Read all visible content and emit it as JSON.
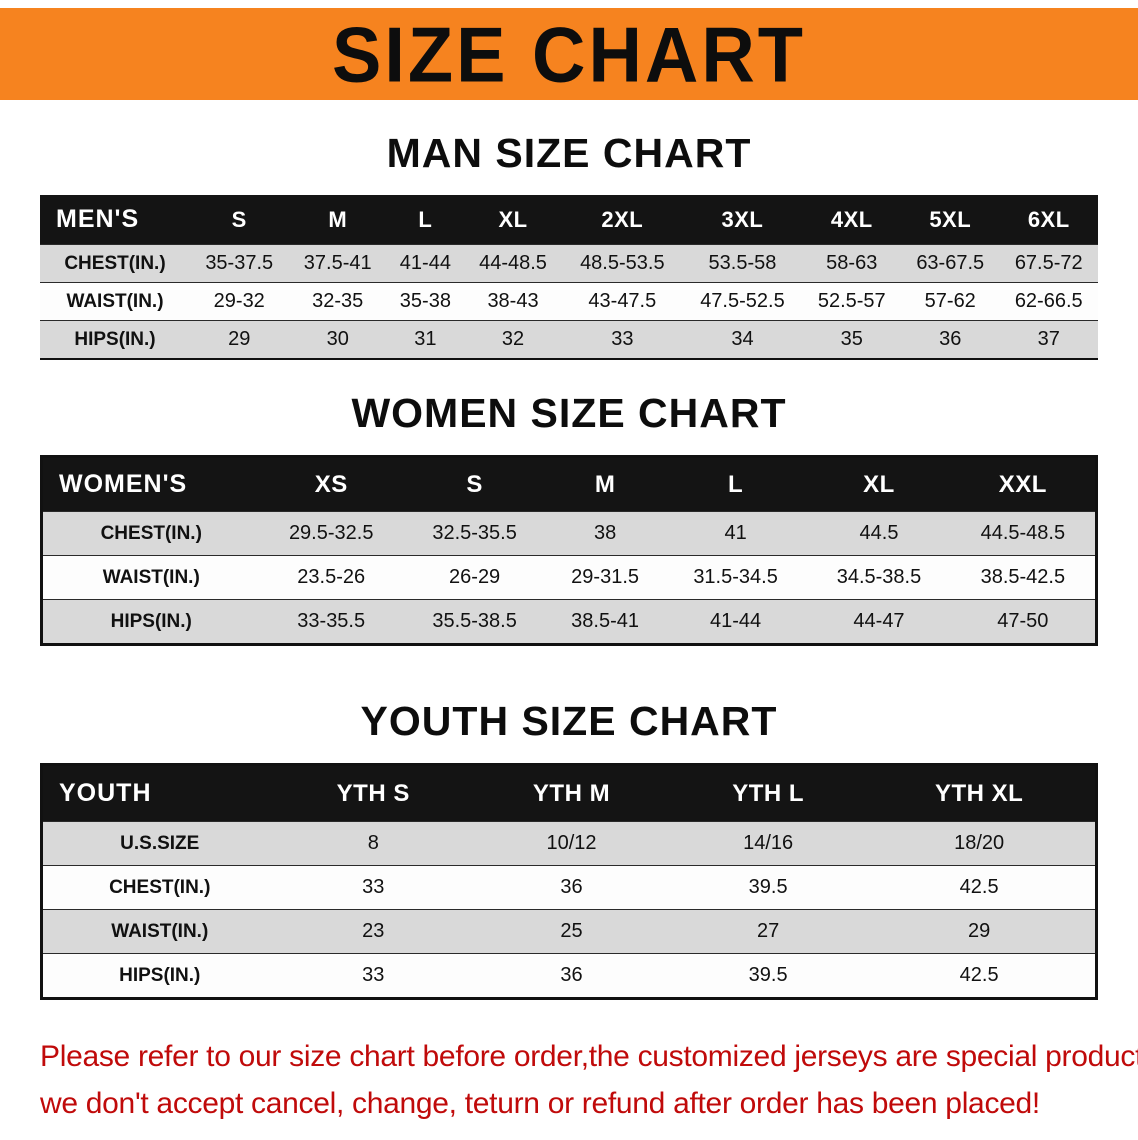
{
  "banner": {
    "title": "SIZE CHART"
  },
  "colors": {
    "banner_bg": "#f6831f",
    "table_header_bg": "#141414",
    "row_alt": "#d9d9d9",
    "disclaimer_red": "#c00a0a"
  },
  "sections": [
    {
      "heading": "MAN SIZE CHART",
      "table": {
        "header": [
          "MEN'S",
          "S",
          "M",
          "L",
          "XL",
          "2XL",
          "3XL",
          "4XL",
          "5XL",
          "6XL"
        ],
        "rows": [
          [
            "CHEST(IN.)",
            "35-37.5",
            "37.5-41",
            "41-44",
            "44-48.5",
            "48.5-53.5",
            "53.5-58",
            "58-63",
            "63-67.5",
            "67.5-72"
          ],
          [
            "WAIST(IN.)",
            "29-32",
            "32-35",
            "35-38",
            "38-43",
            "43-47.5",
            "47.5-52.5",
            "52.5-57",
            "57-62",
            "62-66.5"
          ],
          [
            "HIPS(IN.)",
            "29",
            "30",
            "31",
            "32",
            "33",
            "34",
            "35",
            "36",
            "37"
          ]
        ]
      }
    },
    {
      "heading": "WOMEN SIZE CHART",
      "table": {
        "header": [
          "WOMEN'S",
          "XS",
          "S",
          "M",
          "L",
          "XL",
          "XXL"
        ],
        "rows": [
          [
            "CHEST(IN.)",
            "29.5-32.5",
            "32.5-35.5",
            "38",
            "41",
            "44.5",
            "44.5-48.5"
          ],
          [
            "WAIST(IN.)",
            "23.5-26",
            "26-29",
            "29-31.5",
            "31.5-34.5",
            "34.5-38.5",
            "38.5-42.5"
          ],
          [
            "HIPS(IN.)",
            "33-35.5",
            "35.5-38.5",
            "38.5-41",
            "41-44",
            "44-47",
            "47-50"
          ]
        ]
      }
    },
    {
      "heading": "YOUTH SIZE CHART",
      "table": {
        "header": [
          "YOUTH",
          "YTH S",
          "YTH M",
          "YTH L",
          "YTH XL"
        ],
        "rows": [
          [
            "U.S.SIZE",
            "8",
            "10/12",
            "14/16",
            "18/20"
          ],
          [
            "CHEST(IN.)",
            "33",
            "36",
            "39.5",
            "42.5"
          ],
          [
            "WAIST(IN.)",
            "23",
            "25",
            "27",
            "29"
          ],
          [
            "HIPS(IN.)",
            "33",
            "36",
            "39.5",
            "42.5"
          ]
        ]
      }
    }
  ],
  "footer": {
    "lines": [
      "Please refer to our size chart before order,the customized jerseys are special products,",
      "we don't accept cancel, change, teturn or refund after order has been placed!"
    ]
  }
}
